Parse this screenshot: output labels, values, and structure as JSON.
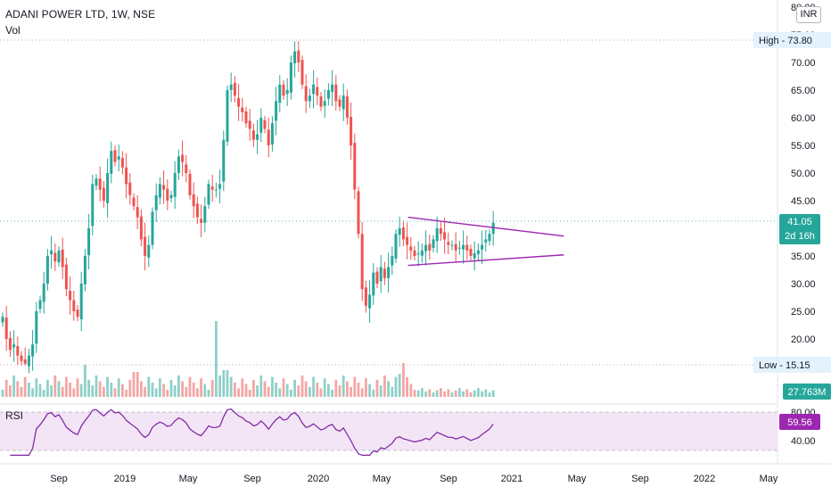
{
  "header": {
    "title": "ADANI POWER LTD, 1W, NSE",
    "volume_label": "Vol",
    "currency": "INR"
  },
  "colors": {
    "up": "#26a69a",
    "down": "#ef5350",
    "up_volume": "#8fd0c8",
    "down_volume": "#f4a6a5",
    "trendline": "#9c27b0",
    "rsi_line": "#7b1fa2",
    "rsi_band": "#f3e5f5",
    "last_price": "#26a69a",
    "volume_badge": "#26a69a",
    "rsi_badge": "#9c27b0",
    "hl_badge": "#e3f2fd"
  },
  "chart_data": {
    "type": "candlestick",
    "price_axis": {
      "ticks": [
        "80.00",
        "75.00",
        "70.00",
        "65.00",
        "60.00",
        "55.00",
        "50.00",
        "45.00",
        "40.00",
        "35.00",
        "30.00",
        "25.00",
        "20.00"
      ],
      "ylim": [
        15,
        80
      ]
    },
    "time_axis": {
      "ticks": [
        "Sep",
        "2019",
        "May",
        "Sep",
        "2020",
        "May",
        "Sep",
        "2021",
        "May",
        "Sep",
        "2022",
        "May"
      ]
    },
    "high": {
      "label": "High",
      "value": "73.80"
    },
    "low": {
      "label": "Low",
      "value": "15.15"
    },
    "last_price": "41.05",
    "countdown": "2d 16h",
    "volume_value": "27.763M",
    "rsi": {
      "label": "RSI",
      "value": "59.56",
      "axis_label": "40.00",
      "band": [
        30,
        70
      ],
      "axis_ticks": [
        "80.00",
        "40.00"
      ]
    },
    "closes": [
      24,
      20,
      18,
      19,
      17,
      16,
      15.5,
      17,
      19,
      25,
      27,
      30,
      35,
      36,
      34,
      36,
      33,
      29,
      27,
      25,
      24,
      30,
      35,
      40,
      48,
      49,
      47,
      45,
      50,
      54,
      52,
      53,
      51,
      48,
      46,
      44,
      42,
      38,
      35,
      37,
      43,
      46,
      48,
      47,
      45,
      46,
      50,
      53,
      52,
      50,
      46,
      44,
      42,
      41,
      44,
      48,
      47,
      47,
      48,
      56,
      65,
      66,
      64,
      62,
      61,
      59,
      58,
      56,
      57,
      60,
      58,
      55,
      59,
      63,
      66,
      64,
      65,
      70,
      72,
      70,
      66,
      63,
      64,
      66,
      64,
      62,
      63,
      65,
      66,
      63,
      62,
      64,
      60,
      55,
      47,
      39,
      29,
      26,
      28,
      32,
      30,
      33,
      31,
      33,
      35,
      39,
      40,
      38,
      37,
      36,
      35,
      35.5,
      36,
      37,
      36,
      38,
      40,
      39,
      38,
      37,
      37,
      36,
      36.5,
      37,
      36,
      35,
      35.5,
      36,
      37,
      38,
      39,
      41
    ],
    "trendlines": [
      {
        "start": {
          "i": 113,
          "p": 42
        },
        "end": {
          "i": 147,
          "p": 38.6
        }
      },
      {
        "start": {
          "i": 113,
          "p": 33.3
        },
        "end": {
          "i": 147,
          "p": 35.2
        }
      }
    ]
  }
}
